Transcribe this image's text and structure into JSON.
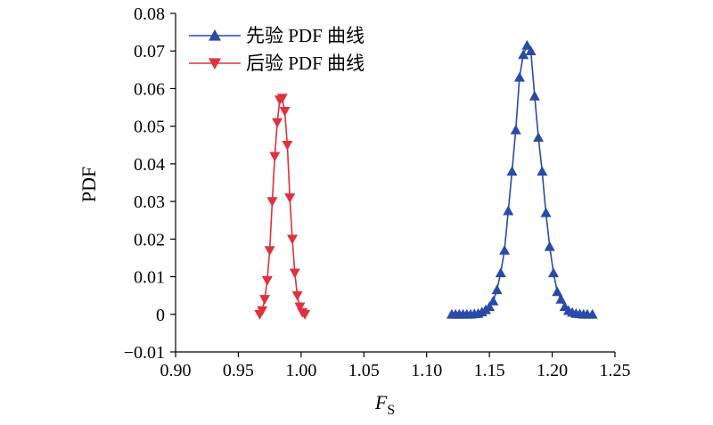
{
  "chart_data": {
    "type": "line",
    "xlabel_main": "F",
    "xlabel_sub": "S",
    "ylabel": "PDF",
    "xlim": [
      0.9,
      1.25
    ],
    "ylim": [
      -0.01,
      0.08
    ],
    "x_ticks": [
      "0.90",
      "0.95",
      "1.00",
      "1.05",
      "1.10",
      "1.15",
      "1.20",
      "1.25"
    ],
    "y_ticks": [
      "−0.01",
      "0",
      "0.01",
      "0.02",
      "0.03",
      "0.04",
      "0.05",
      "0.06",
      "0.07",
      "0.08"
    ],
    "grid": false,
    "legend_position": "top-left",
    "series": [
      {
        "name": "先验 PDF 曲线",
        "color": "#2a4aa8",
        "marker": "triangle-up",
        "x": [
          1.12,
          1.123,
          1.126,
          1.129,
          1.132,
          1.135,
          1.138,
          1.141,
          1.144,
          1.147,
          1.15,
          1.153,
          1.156,
          1.159,
          1.162,
          1.165,
          1.168,
          1.171,
          1.174,
          1.177,
          1.18,
          1.183,
          1.186,
          1.189,
          1.192,
          1.195,
          1.198,
          1.201,
          1.204,
          1.207,
          1.21,
          1.213,
          1.216,
          1.219,
          1.222,
          1.225,
          1.228,
          1.232
        ],
        "values": [
          0.0,
          0.0,
          0.0,
          0.0,
          0.0,
          0.0,
          0.0001,
          0.0002,
          0.0006,
          0.0012,
          0.002,
          0.0035,
          0.0065,
          0.011,
          0.017,
          0.0275,
          0.038,
          0.049,
          0.063,
          0.069,
          0.0715,
          0.07,
          0.058,
          0.047,
          0.038,
          0.027,
          0.018,
          0.011,
          0.006,
          0.004,
          0.002,
          0.001,
          0.0005,
          0.0002,
          0.0001,
          0.0,
          0.0,
          0.0
        ]
      },
      {
        "name": "后验 PDF 曲线",
        "color": "#e0303e",
        "marker": "triangle-down",
        "x": [
          0.967,
          0.969,
          0.971,
          0.973,
          0.975,
          0.977,
          0.979,
          0.981,
          0.983,
          0.985,
          0.987,
          0.989,
          0.991,
          0.993,
          0.995,
          0.997,
          0.999,
          1.001,
          1.003
        ],
        "values": [
          0.0,
          0.001,
          0.004,
          0.009,
          0.017,
          0.03,
          0.042,
          0.051,
          0.057,
          0.0575,
          0.054,
          0.045,
          0.031,
          0.02,
          0.011,
          0.005,
          0.002,
          0.0005,
          0.0
        ]
      }
    ]
  }
}
